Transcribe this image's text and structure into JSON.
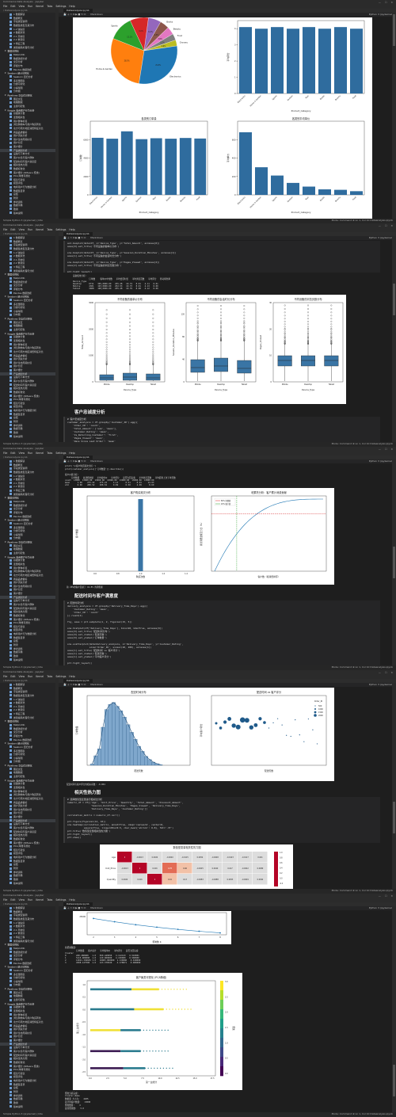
{
  "window": {
    "title": "Commerce Data Analysis · Jupyter",
    "controls": "— ☐ ✕"
  },
  "menu": [
    "File",
    "Edit",
    "View",
    "Run",
    "Kernel",
    "Tabs",
    "Settings",
    "Help"
  ],
  "tab": {
    "label": "Dataanalysis.ipynb"
  },
  "toolbar": {
    "cell_type": "Markdown",
    "kernel": "Python 3 (ipykernel)"
  },
  "status": {
    "left": "Simple   Python 3 (ipykernel) | Idle",
    "right": "Mode: Command  ⊕  Ln 1, Col 10   Dataanalysis.ipynb"
  },
  "filetree": {
    "header": "/ Dataanalysis.ipynb",
    "items": [
      {
        "label": "1 数据解读",
        "folder": false
      },
      {
        "label": "数据概览",
        "folder": false
      },
      {
        "label": "字段类型说明",
        "folder": false
      },
      {
        "label": "数据集类型及其分布",
        "folder": false
      },
      {
        "label": "1.2 缺失值",
        "folder": false
      },
      {
        "label": "2 数据清洗",
        "folder": false
      },
      {
        "label": "2.1 异常值",
        "folder": false
      },
      {
        "label": "2.2 重复值",
        "folder": false
      },
      {
        "label": "3 特征工程",
        "folder": false
      },
      {
        "label": "类别编码处理与分析",
        "folder": false
      },
      {
        "label": "数据可视化",
        "folder": true
      },
      {
        "label": "Matplotlib",
        "folder": false
      },
      {
        "label": "数据透视分析",
        "folder": false
      },
      {
        "label": "交叉分析",
        "folder": false
      },
      {
        "label": "评级分布",
        "folder": false
      },
      {
        "label": "Pandas 数据透视",
        "folder": false
      },
      {
        "label": "Seaborn 统计可视化",
        "folder": true
      },
      {
        "label": "Seaborn 回归分析",
        "folder": false
      },
      {
        "label": "多变量图表",
        "folder": false
      },
      {
        "label": "分类可视化",
        "folder": false
      },
      {
        "label": "小提琴图",
        "folder": false
      },
      {
        "label": "分布图",
        "folder": false
      },
      {
        "label": "Pipelines 交互式可视化",
        "folder": true
      },
      {
        "label": "图表交互",
        "folder": false
      },
      {
        "label": "地理数据",
        "folder": false
      },
      {
        "label": "主题与配色",
        "folder": false
      },
      {
        "label": "Kaggle 电商客户行为分析",
        "folder": true
      },
      {
        "label": "基础统计量",
        "folder": false
      },
      {
        "label": "变量相关性",
        "folder": false
      },
      {
        "label": "用户群体标签",
        "folder": false
      },
      {
        "label": "浏览购物车与用户购买转化",
        "folder": false
      },
      {
        "label": "北方与南方地区消费特征对比",
        "folder": false
      },
      {
        "label": "商品品类偏好",
        "folder": false
      },
      {
        "label": "用户流失分析",
        "folder": false
      },
      {
        "label": "用户生命周期价值",
        "folder": false
      },
      {
        "label": "用户分层",
        "folder": false
      },
      {
        "label": "客户细分",
        "folder": false
      },
      {
        "label": "产品类别分析",
        "folder": false
      },
      {
        "label": "设备与下单方式",
        "folder": false
      },
      {
        "label": "客户价值与客户群体",
        "folder": false
      },
      {
        "label": "配送时间与客户满意度",
        "folder": false
      },
      {
        "label": "相关性热力图",
        "folder": false
      },
      {
        "label": "数据标准化",
        "folder": false
      },
      {
        "label": "客户细分 (KMeans 聚类)",
        "folder": false
      },
      {
        "label": "PCA 降维可视化",
        "folder": false
      },
      {
        "label": "结论与建议",
        "folder": false
      },
      {
        "label": "模型评估",
        "folder": false
      },
      {
        "label": "电商用户行为数据分析",
        "folder": false
      },
      {
        "label": "数据集目录",
        "folder": false
      },
      {
        "label": "总结",
        "folder": false
      },
      {
        "label": "附录",
        "folder": false
      },
      {
        "label": "参考资料",
        "folder": false
      },
      {
        "label": "数据字典",
        "folder": false
      },
      {
        "label": "致谢",
        "folder": false
      },
      {
        "label": "版本说明",
        "folder": false
      }
    ]
  },
  "frame1": {
    "pie_labels": [
      "Home & Garden",
      "Sports",
      "Fashion",
      "Toys",
      "Books",
      "Beauty",
      "Food",
      "Grocery",
      "Electronics"
    ],
    "pie_values": [
      28.5,
      12.1,
      9.0,
      6.2,
      4.5,
      3.8,
      3.2,
      2.9,
      29.8
    ],
    "pie_pct": [
      "28.5%",
      "12.1%",
      "9.0%",
      "6.2%",
      "4.5%",
      "3.8%",
      "3.2%",
      "2.9%",
      "29.8%"
    ],
    "bar_top_right": {
      "ylabel": "平均评分",
      "xlabel": "Product_Category",
      "categories": [
        "Electronics",
        "Home & Garden",
        "Sports",
        "Fashion",
        "Toys",
        "Books",
        "Beauty",
        "Food"
      ],
      "values": [
        4.1,
        4.0,
        4.1,
        4.0,
        4.1,
        4.0,
        4.1,
        4.0
      ]
    },
    "bar_bottom_left": {
      "title": "各类别订单量",
      "ylabel": "订单数",
      "xlabel": "Product_Category",
      "categories": [
        "Electronics",
        "Home & Garden",
        "Sports",
        "Fashion",
        "Toys",
        "Books",
        "Beauty",
        "Food"
      ],
      "values": [
        6200,
        6100,
        6900,
        6050,
        6150,
        6100,
        6180,
        6120
      ]
    },
    "bar_bottom_right": {
      "title": "各类别平均单价",
      "ylabel": "平均单价",
      "xlabel": "Product_Category",
      "categories": [
        "Electronics",
        "Home & Garden",
        "Sports",
        "Fashion",
        "Toys",
        "Books",
        "Beauty",
        "Food"
      ],
      "values": [
        680,
        300,
        210,
        130,
        90,
        60,
        55,
        40
      ]
    }
  },
  "frame2": {
    "code1": "ax1.boxplot(data=df, x='Device_Type', y='Total_Amount', ax=axes[0])\naxes[0].set_title('不同设备的客单价分布')\n\nsns.boxplot(data=df, x='Device_Type', y='Session_Duration_Minutes', ax=axes[1])\naxes[1].set_title('不同设备的会话时长分布')\n\nsns.boxplot(data=df, x='Device_Type', y='Pages_Viewed', ax=axes[2])\naxes[2].set_title('不同设备的浏览页数分布')\n\nplt.tight_layout()\nplt.show()",
    "out1": "设备使用分析:\n             订单数    客单价中位数   平均会话时长   平均浏览页数   平均评分   移动转化率\nDevice_Type\nDesktop      6711   305,0000.00   255.28   10.74   8.01   4.11   0.01\nMobile       4301   193,0000.00   252.53   10.73   8.01   4.13   0.00\nTablet       3008   198,0000.00   255.28   10.79   8.08   4.12   0.00",
    "titles": [
      "不同设备的客单价分布",
      "不同设备的会话时长分布",
      "不同设备的浏览页数分布"
    ],
    "ylabels": [
      "Total_Amount",
      "Session_Duration_Minutes",
      "Pages_Viewed"
    ],
    "xlabel": "Device_Type",
    "categories": [
      "Mobile",
      "Desktop",
      "Tablet"
    ],
    "heading": "客户忠诚度分析",
    "code2": "# 客户忠诚度分析\ncustomer_analysis = df.groupby('Customer_ID').agg({\n    'Order_ID': 'count',\n    'Total_Amount': ['sum', 'mean'],\n    'Customer_Rating': 'mean',\n    'Is_Returning_Customer': 'first',\n    'Pages_Viewed': 'mean',\n    'Days_Since_Last_Order': 'mean'\n}).round(2)\n\ncustomer_analysis.columns = ['订单数量', '总消费金额', '平均客单价', '平均评分', '是否为回头客', '平均浏览页数', '平均距离上次下单天数']\ncustomer_analysis = customer_analysis.sort_values('总消费金额', ascending=False)"
  },
  "frame3": {
    "out_top": "print('\\n客户购买频次分析:')\nprint(customer_analysis[['订单数量']].describe())\n\n客户价值分析:\n     订单数量   总消费金额   平均客单价   平均评分   是否为回头客   平均浏览页数   平均距离上次下单天数\ncount  13000  13000.00  13000.00  13000.00  13000.00  13000.00  13000.00\nmean      1.00    275.22    275.22     4.13      0.51     8.01     14.93\nstd       0.00    288.52    288.52     0.69      0.50     4.09      8.69",
    "left_title": "客户购买频次分布",
    "left_ylabel": "客户数量",
    "left_xlabel": "购买次数",
    "left_xticks": [
      "0.6",
      "0.8",
      "1.0",
      "1.2",
      "1.4"
    ],
    "right_title": "帕累托分析：客户累计消费贡献",
    "right_ylabel": "累计消费金额百分比（%）",
    "right_xlabel": "客户数（按消费排序）",
    "legend": [
      "80% 消费线",
      "20% 客户线"
    ],
    "note": "前 20%的客户贡献了 41.8% 的销售额",
    "heading": "配送时间与客户满意度",
    "code": "# 配送时间分析\ndelivery_analysis = df.groupby('Delivery_Time_Days').agg({\n    'Customer_Rating': 'mean',\n    'Order_ID': 'count'\n}).round(2)\n\nfig, axes = plt.subplots(1, 2, figsize=(15, 5))\n\nsns.histplot(df['Delivery_Time_Days'], bins=20, kde=True, ax=axes[0])\naxes[0].set_title('配送时间分布')\naxes[0].set_xlabel('配送天数')\naxes[0].set_ylabel('订单数量')\n\nsns.scatterplot(data=delivery_analysis, x='Delivery_Time_Days', y='Customer_Rating',\n                size='Order_ID', sizes=(20, 200), ax=axes[1])\naxes[1].set_title('配送时间 vs 客户评分')\naxes[1].set_xlabel('配送天数')\naxes[1].set_ylabel('平均客户评分')\n\nplt.tight_layout()\nplt.show()"
  },
  "frame4": {
    "left_title": "配送时间分布",
    "left_ylabel": "订单数量",
    "left_xlabel": "配送天数",
    "hist_values": [
      20,
      150,
      260,
      600,
      880,
      960,
      990,
      930,
      860,
      760,
      640,
      520,
      410,
      300,
      220,
      140,
      90,
      50,
      25,
      10
    ],
    "right_title": "配送时间 vs 客户评分",
    "right_ylabel": "平均客户评分",
    "right_xlabel": "配送天数",
    "legend_title": "Order_ID",
    "legend_items": [
      "500",
      "1000",
      "1500",
      "2000"
    ],
    "note": "配送时间与客户评分的相关系数: -0.004",
    "heading": "相关性热力图",
    "code": "# 选择数值型变量进行相关性分析\nnumeric_df = df[['Age', 'Unit_Price', 'Quantity', 'Total_Amount', 'Discount_Amount',\n                 'Session_Duration_Minutes', 'Pages_Viewed', 'Delivery_Time_Days',\n                 'Delivery_Time_Days', 'Customer_Rating']]\n\ncorrelation_matrix = numeric_df.corr()\n\nplt.figure(figsize=(12, 10))\nsns.heatmap(correlation_matrix, annot=True, cmap='coolwarm', center=0,\n            square=True, linewidths=0.5, cbar_kws={'shrink': 0.8}, fmt='.3f')\nplt.title('数值型变量相关性热力图')\nplt.tight_layout()\nplt.show()",
    "heat_title": "数值型变量相关性热力图",
    "heat_rows": [
      "Age",
      "Unit_Price",
      "Quantity"
    ],
    "heat_vals": [
      [
        "1",
        "-0.0013",
        "0.0022",
        "-0.0040",
        "-0.0115",
        "0.0054",
        "-0.0048",
        "-0.0123",
        "-0.0117",
        "0.021"
      ],
      [
        "-0.0013",
        "1",
        "0.016",
        "0.78",
        "0.46",
        "-0.0025",
        "0.0040",
        "0.017",
        "-0.0042",
        "0.0089"
      ],
      [
        "0.0022",
        "0.016",
        "1",
        "0.41",
        "0.13",
        "-0.0083",
        "-0.0088",
        "0.0053",
        "-0.0049",
        "0.0092"
      ]
    ],
    "cbar_ticks": [
      "1.0",
      "0.8",
      "0.6",
      "0.4",
      "0.2",
      "0.0",
      "-0.2"
    ]
  },
  "frame5": {
    "top_xlabel": "聚类数 K",
    "top_ytick": "25000",
    "top_xticks": [
      "2",
      "3",
      "4",
      "5",
      "6",
      "7",
      "8"
    ],
    "top_values": [
      25000,
      23800,
      22700,
      21800,
      21000,
      20300,
      19700
    ],
    "out_top": "各聚类数量:\n         订单数量   客户总计   平均客单价   平均评分   是否为回头客\nCluster\n0        268.480688   1.0   500.440956   4.112143   0.510001\n1        5115.000000  1.0   120.000000   4.130000   0.500000\n2        12021.349045 1.0   18083.000000  1.130000   0.018000\n3        4508.127500  1.0   123.378320    4.178871   0.000000",
    "scatter_title": "客户聚类可视化 (PCA降维)",
    "scatter_xlabel": "第一主成分",
    "scatter_ylabel": "第二主成分",
    "scatter_xticks": [
      "0.0",
      "2.5",
      "5.0",
      "7.5",
      "10.0",
      "12.5",
      "15.0",
      "17.5"
    ],
    "scatter_yticks": [
      "1.0",
      "0.5",
      "0.0",
      "-0.5",
      "-1.0",
      "-1.5",
      "-2.0",
      "-2.5"
    ],
    "cbar_label": "聚类",
    "cbar_ticks": [
      "3.0",
      "2.5",
      "2.0",
      "1.5",
      "1.0",
      "0.5",
      "0.0"
    ],
    "out_bottom": "聚类分析完成:\nCluster_Name\n数据量 大小为:   2205\n总计的客户数量:   13000\n聚类数量:    4\n最佳聚类数:   3.0"
  }
}
